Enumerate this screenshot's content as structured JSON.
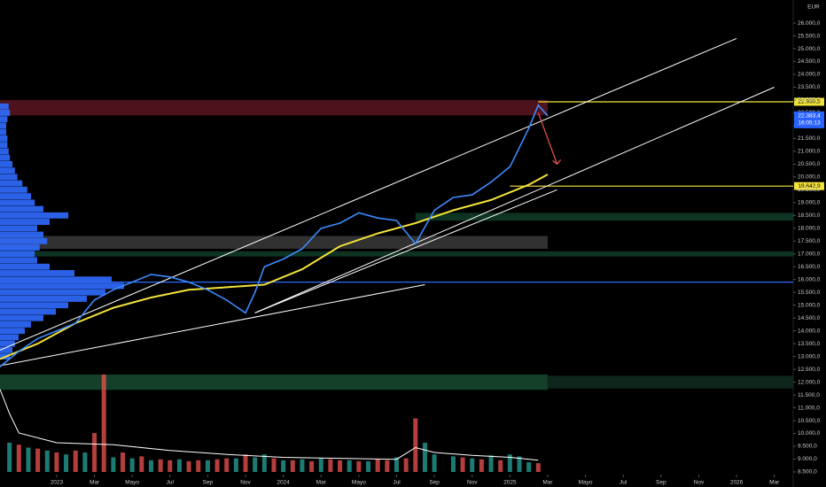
{
  "chart_data": {
    "type": "financial",
    "currency": "EUR",
    "xlim": [
      -3,
      39
    ],
    "ylim": [
      8430,
      26900
    ],
    "xticks": [
      {
        "value": 0,
        "label": "2023"
      },
      {
        "value": 2,
        "label": "Mar"
      },
      {
        "value": 4,
        "label": "Mayo"
      },
      {
        "value": 6,
        "label": "Jul"
      },
      {
        "value": 8,
        "label": "Sep"
      },
      {
        "value": 10,
        "label": "Nov"
      },
      {
        "value": 12,
        "label": "2024"
      },
      {
        "value": 14,
        "label": "Mar"
      },
      {
        "value": 16,
        "label": "Mayo"
      },
      {
        "value": 18,
        "label": "Jul"
      },
      {
        "value": 20,
        "label": "Sep"
      },
      {
        "value": 22,
        "label": "Nov"
      },
      {
        "value": 24,
        "label": "2025"
      },
      {
        "value": 26,
        "label": "Mar"
      },
      {
        "value": 28,
        "label": "Mayo"
      },
      {
        "value": 30,
        "label": "Jul"
      },
      {
        "value": 32,
        "label": "Sep"
      },
      {
        "value": 34,
        "label": "Nov"
      },
      {
        "value": 36,
        "label": "2026"
      },
      {
        "value": 38,
        "label": "Mar"
      }
    ],
    "yticks": [
      {
        "value": 8500,
        "label": "8.500,0"
      },
      {
        "value": 9000,
        "label": "9.000,0"
      },
      {
        "value": 9500,
        "label": "9.500,0"
      },
      {
        "value": 10000,
        "label": "10.000,0"
      },
      {
        "value": 10500,
        "label": "10.500,0"
      },
      {
        "value": 11000,
        "label": "11.000,0"
      },
      {
        "value": 11500,
        "label": "11.500,0"
      },
      {
        "value": 12000,
        "label": "12.000,0"
      },
      {
        "value": 12500,
        "label": "12.500,0"
      },
      {
        "value": 13000,
        "label": "13.000,0"
      },
      {
        "value": 13500,
        "label": "13.500,0"
      },
      {
        "value": 14000,
        "label": "14.000,0"
      },
      {
        "value": 14500,
        "label": "14.500,0"
      },
      {
        "value": 15000,
        "label": "15.000,0"
      },
      {
        "value": 15500,
        "label": "15.500,0"
      },
      {
        "value": 16000,
        "label": "16.000,0"
      },
      {
        "value": 16500,
        "label": "16.500,0"
      },
      {
        "value": 17000,
        "label": "17.000,0"
      },
      {
        "value": 17500,
        "label": "17.500,0"
      },
      {
        "value": 18000,
        "label": "18.000,0"
      },
      {
        "value": 18500,
        "label": "18.500,0"
      },
      {
        "value": 19000,
        "label": "19.000,0"
      },
      {
        "value": 19500,
        "label": "19.500,0"
      },
      {
        "value": 20000,
        "label": "20.000,0"
      },
      {
        "value": 20500,
        "label": "20.500,0"
      },
      {
        "value": 21000,
        "label": "21.000,0"
      },
      {
        "value": 21500,
        "label": "21.500,0"
      },
      {
        "value": 22000,
        "label": "22.000,0"
      },
      {
        "value": 22500,
        "label": "22.500,0"
      },
      {
        "value": 23000,
        "label": "23.000,0"
      },
      {
        "value": 23500,
        "label": "23.500,0"
      },
      {
        "value": 24000,
        "label": "24.000,0"
      },
      {
        "value": 24500,
        "label": "24.500,0"
      },
      {
        "value": 25000,
        "label": "25.000,0"
      },
      {
        "value": 25500,
        "label": "25.500,0"
      },
      {
        "value": 26000,
        "label": "26.000,0"
      }
    ],
    "zones": [
      {
        "x": [
          -3,
          26
        ],
        "from": 22400,
        "to": 23000,
        "color": "#5a1520"
      },
      {
        "x": [
          19,
          39
        ],
        "from": 18300,
        "to": 18600,
        "color": "#123c28"
      },
      {
        "x": [
          -3,
          26
        ],
        "from": 17200,
        "to": 17700,
        "color": "#3a3a3a"
      },
      {
        "x": [
          -3,
          39
        ],
        "from": 16900,
        "to": 17100,
        "color": "#123c28"
      },
      {
        "x": [
          -3,
          26
        ],
        "from": 11700,
        "to": 12300,
        "color": "#174a30"
      },
      {
        "x": [
          26,
          39
        ],
        "from": 11750,
        "to": 12250,
        "color": "#0f2c1e"
      }
    ],
    "profile": {
      "color": "#2f6bff",
      "lim": [
        0,
        100
      ],
      "prices": [
        13000,
        13250,
        13500,
        13750,
        14000,
        14250,
        14500,
        14750,
        15000,
        15250,
        15500,
        15750,
        16000,
        16250,
        16500,
        16750,
        17000,
        17250,
        17500,
        17750,
        18000,
        18250,
        18500,
        18750,
        19000,
        19250,
        19500,
        19750,
        20000,
        20250,
        20500,
        20750,
        21000,
        21250,
        21500,
        21750,
        22000,
        22250,
        22500,
        22750
      ],
      "values": [
        8,
        10,
        12,
        15,
        20,
        25,
        35,
        45,
        55,
        70,
        85,
        100,
        90,
        60,
        40,
        30,
        28,
        32,
        38,
        35,
        30,
        40,
        55,
        35,
        28,
        25,
        22,
        18,
        14,
        12,
        10,
        8,
        7,
        6,
        6,
        5,
        5,
        6,
        8,
        7
      ]
    },
    "volume_lim": [
      0,
      100
    ],
    "volume_up": {
      "color": "#26a69a",
      "x": [
        -2.5,
        -1.5,
        -0.5,
        0.5,
        1.5,
        3,
        4,
        5,
        6.5,
        8,
        9.5,
        10.5,
        11,
        12,
        13,
        14,
        15.5,
        16.5,
        18,
        19.5,
        20,
        21,
        22,
        23,
        24,
        24.5,
        25
      ],
      "values": [
        30,
        25,
        22,
        18,
        20,
        15,
        14,
        12,
        13,
        12,
        14,
        15,
        18,
        12,
        13,
        14,
        12,
        11,
        15,
        30,
        18,
        16,
        14,
        17,
        18,
        16,
        10
      ]
    },
    "volume_down": {
      "color": "#ef5350",
      "x": [
        -2,
        -1,
        0,
        1,
        2,
        2.5,
        3.5,
        4.5,
        5.5,
        6,
        7,
        7.5,
        8.5,
        9,
        10,
        11.5,
        12.5,
        13.5,
        14.5,
        15,
        16,
        17,
        17.5,
        18.5,
        19,
        21.5,
        22.5,
        23.5,
        25.5
      ],
      "values": [
        28,
        24,
        20,
        22,
        40,
        100,
        20,
        16,
        13,
        12,
        11,
        12,
        13,
        14,
        18,
        14,
        12,
        11,
        13,
        12,
        11,
        13,
        12,
        14,
        55,
        15,
        13,
        12,
        9
      ]
    },
    "volume_ma": {
      "color": "#ffffff",
      "x": [
        -3,
        -2.5,
        -2,
        0,
        3,
        6,
        9,
        12,
        15,
        18,
        19,
        20,
        22,
        24,
        25.5
      ],
      "values": [
        85,
        60,
        40,
        30,
        28,
        22,
        18,
        15,
        14,
        13,
        25,
        20,
        17,
        15,
        12
      ]
    },
    "ma": {
      "color": "#f2e33a",
      "x": [
        -3,
        -1,
        1,
        3,
        5,
        7,
        9,
        11,
        13,
        15,
        17,
        19,
        21,
        23,
        25,
        26
      ],
      "values": [
        12900,
        13500,
        14300,
        14900,
        15300,
        15600,
        15700,
        15800,
        16400,
        17300,
        17800,
        18200,
        18700,
        19100,
        19700,
        20100
      ]
    },
    "price": {
      "color": "#3d8bff",
      "x": [
        -3,
        -2,
        -1,
        0,
        1,
        2,
        3,
        4,
        5,
        6,
        7,
        8,
        9,
        10,
        10.5,
        11,
        12,
        13,
        14,
        15,
        16,
        17,
        18,
        19,
        20,
        21,
        22,
        23,
        24,
        25,
        25.5,
        26
      ],
      "values": [
        12600,
        13200,
        13700,
        14000,
        14300,
        15200,
        15600,
        15900,
        16200,
        16100,
        15900,
        15600,
        15200,
        14700,
        15500,
        16500,
        16800,
        17200,
        18000,
        18200,
        18600,
        18400,
        18300,
        17400,
        18700,
        19200,
        19300,
        19800,
        20400,
        21900,
        22800,
        22383.4
      ]
    },
    "trendlines": [
      {
        "color": "#ffffff",
        "x": [
          -3,
          36
        ],
        "values": [
          13250,
          25400
        ]
      },
      {
        "color": "#ffffff",
        "x": [
          10.5,
          38
        ],
        "values": [
          14700,
          23500
        ]
      },
      {
        "color": "#ffffff",
        "x": [
          10.5,
          26.5
        ],
        "values": [
          14700,
          19500
        ]
      },
      {
        "color": "#ffffff",
        "x": [
          -3,
          19.5
        ],
        "values": [
          12640,
          15800
        ]
      }
    ],
    "arrow": {
      "color": "#ef5350",
      "x": [
        25.5,
        26.5
      ],
      "values": [
        22500,
        20500
      ]
    },
    "levels": [
      {
        "x": [
          25.5,
          39
        ],
        "value": 22930.5,
        "label": "22.930,5",
        "color": "#f2e33a"
      },
      {
        "x": [
          24,
          39
        ],
        "value": 19642.9,
        "label": "19.642,9",
        "color": "#f2e33a"
      },
      {
        "x": [
          -3,
          39
        ],
        "value": 15900,
        "color": "#2f6bff"
      }
    ],
    "last_price": {
      "value": 22383.4,
      "label": "22.383,4",
      "countdown": "16:05:13"
    }
  }
}
